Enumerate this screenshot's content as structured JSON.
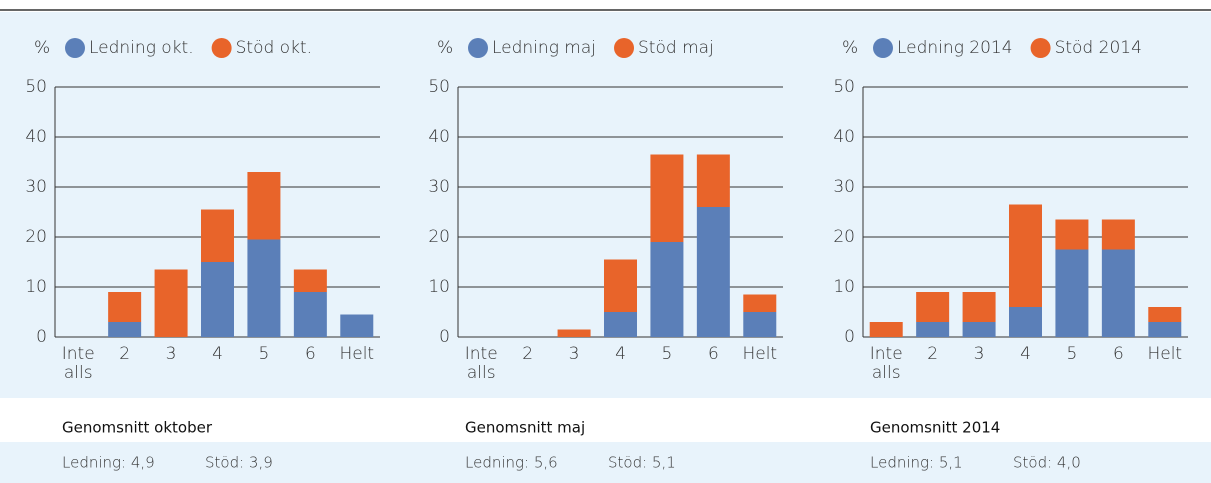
{
  "chart_data": [
    {
      "type": "stacked-bar",
      "ylabel": "%",
      "categories": [
        "Inte alls",
        "2",
        "3",
        "4",
        "5",
        "6",
        "Helt"
      ],
      "series": [
        {
          "name": "Ledning okt.",
          "color": "#5b7fb8",
          "values": [
            0,
            3,
            0,
            15,
            19.5,
            9,
            4.5
          ]
        },
        {
          "name": "Stöd okt.",
          "color": "#e8642a",
          "values": [
            0,
            6,
            13.5,
            10.5,
            13.5,
            4.5,
            0
          ]
        }
      ],
      "ylim": [
        0,
        50
      ],
      "yticks": [
        0,
        10,
        20,
        30,
        40,
        50
      ],
      "grid": true,
      "annotations": [
        "Genomsnitt oktober",
        "Ledning: 4,9",
        "Stöd: 3,9"
      ]
    },
    {
      "type": "stacked-bar",
      "ylabel": "%",
      "categories": [
        "Inte alls",
        "2",
        "3",
        "4",
        "5",
        "6",
        "Helt"
      ],
      "series": [
        {
          "name": "Ledning maj",
          "color": "#5b7fb8",
          "values": [
            0,
            0,
            0,
            5,
            19,
            26,
            5
          ]
        },
        {
          "name": "Stöd maj",
          "color": "#e8642a",
          "values": [
            0,
            0,
            1.5,
            10.5,
            17.5,
            10.5,
            3.5
          ]
        }
      ],
      "ylim": [
        0,
        50
      ],
      "yticks": [
        0,
        10,
        20,
        30,
        40,
        50
      ],
      "grid": true,
      "annotations": [
        "Genomsnitt maj",
        "Ledning: 5,6",
        "Stöd: 5,1"
      ]
    },
    {
      "type": "stacked-bar",
      "ylabel": "%",
      "categories": [
        "Inte alls",
        "2",
        "3",
        "4",
        "5",
        "6",
        "Helt"
      ],
      "series": [
        {
          "name": "Ledning 2014",
          "color": "#5b7fb8",
          "values": [
            0,
            3,
            3,
            6,
            17.5,
            17.5,
            3
          ]
        },
        {
          "name": "Stöd 2014",
          "color": "#e8642a",
          "values": [
            3,
            6,
            6,
            20.5,
            6,
            6,
            3
          ]
        }
      ],
      "ylim": [
        0,
        50
      ],
      "yticks": [
        0,
        10,
        20,
        30,
        40,
        50
      ],
      "grid": true,
      "annotations": [
        "Genomsnitt 2014",
        "Ledning: 5,1",
        "Stöd: 4,0"
      ]
    }
  ]
}
